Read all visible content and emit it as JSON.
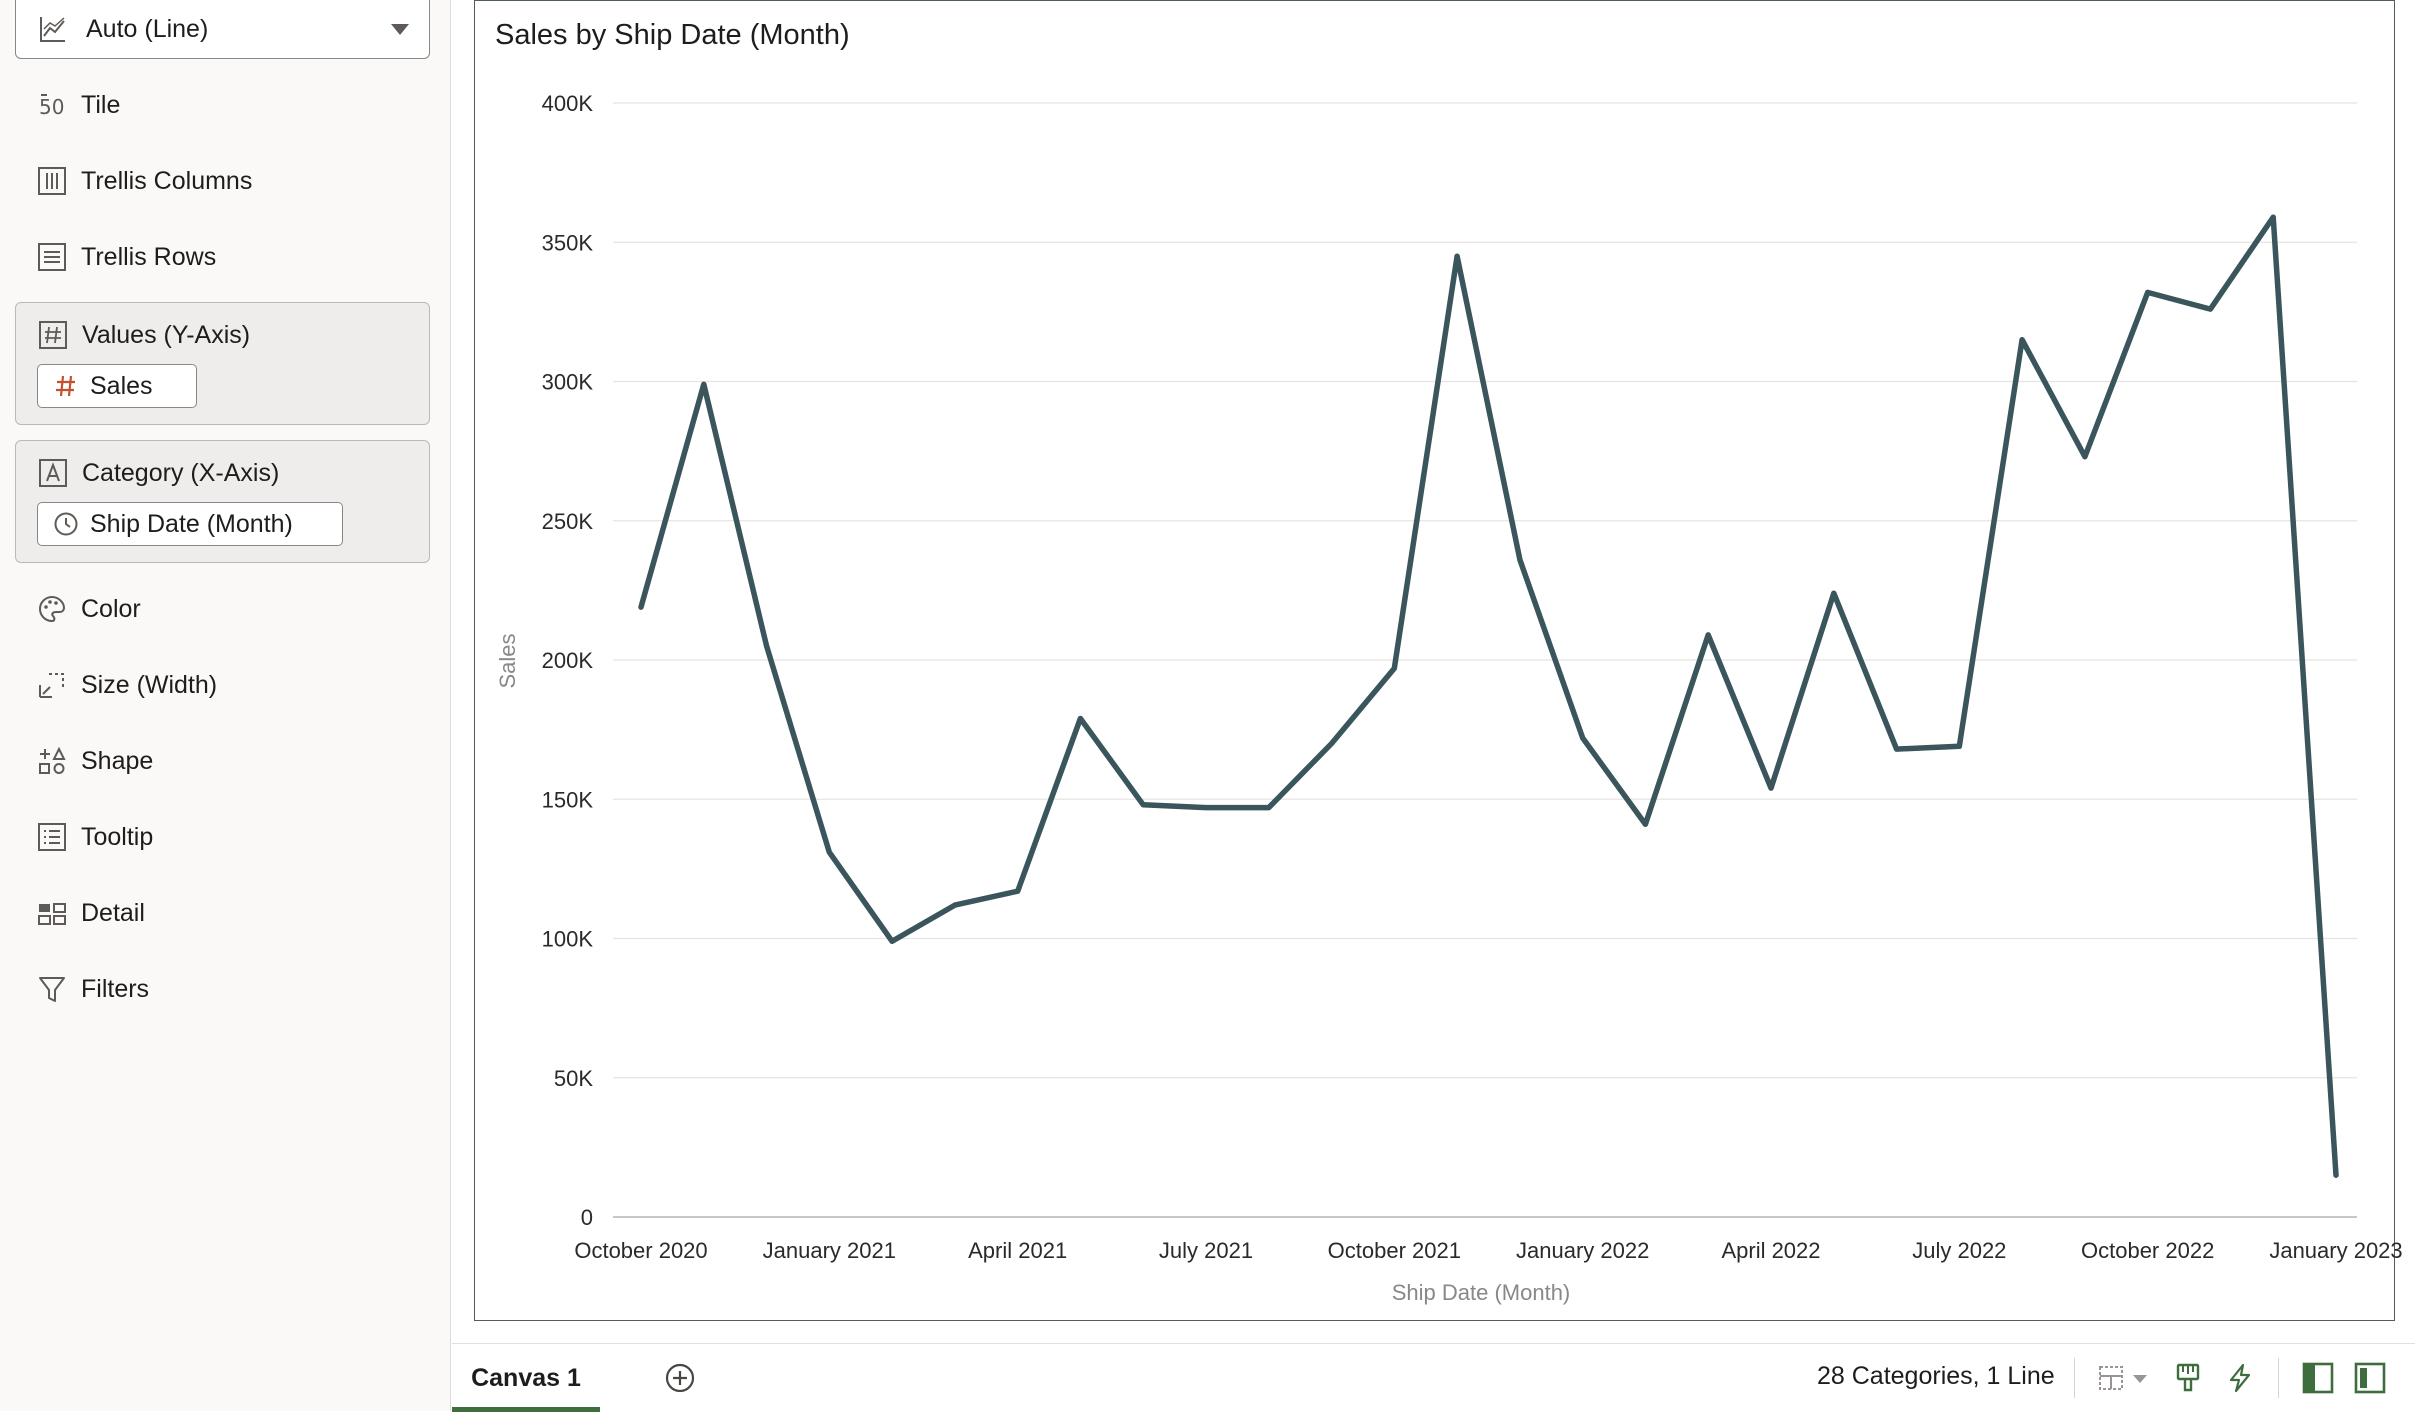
{
  "panel": {
    "viz_type": "Auto (Line)",
    "rows_top": [
      {
        "label": "Tile",
        "icon": "tile-icon"
      },
      {
        "label": "Trellis Columns",
        "icon": "trellis-columns-icon"
      },
      {
        "label": "Trellis Rows",
        "icon": "trellis-rows-icon"
      }
    ],
    "values_box": {
      "label": "Values (Y-Axis)",
      "pill": "Sales"
    },
    "category_box": {
      "label": "Category (X-Axis)",
      "pill": "Ship Date (Month)"
    },
    "rows_bottom": [
      {
        "label": "Color",
        "icon": "palette-icon"
      },
      {
        "label": "Size (Width)",
        "icon": "size-icon"
      },
      {
        "label": "Shape",
        "icon": "shape-icon"
      },
      {
        "label": "Tooltip",
        "icon": "tooltip-icon"
      },
      {
        "label": "Detail",
        "icon": "detail-icon"
      },
      {
        "label": "Filters",
        "icon": "filter-icon"
      }
    ]
  },
  "chart_data": {
    "type": "line",
    "title": "Sales by Ship Date (Month)",
    "xlabel": "Ship Date (Month)",
    "ylabel": "Sales",
    "ylim": [
      0,
      400000
    ],
    "yticks": [
      0,
      50000,
      100000,
      150000,
      200000,
      250000,
      300000,
      350000,
      400000
    ],
    "ytick_labels": [
      "0",
      "50K",
      "100K",
      "150K",
      "200K",
      "250K",
      "300K",
      "350K",
      "400K"
    ],
    "x": [
      "2020-10",
      "2020-11",
      "2020-12",
      "2021-01",
      "2021-02",
      "2021-03",
      "2021-04",
      "2021-05",
      "2021-06",
      "2021-07",
      "2021-08",
      "2021-09",
      "2021-10",
      "2021-11",
      "2021-12",
      "2022-01",
      "2022-02",
      "2022-03",
      "2022-04",
      "2022-05",
      "2022-06",
      "2022-07",
      "2022-08",
      "2022-09",
      "2022-10",
      "2022-11",
      "2022-12",
      "2023-01"
    ],
    "xtick_labels": [
      {
        "index": 0,
        "label": "October 2020"
      },
      {
        "index": 3,
        "label": "January 2021"
      },
      {
        "index": 6,
        "label": "April 2021"
      },
      {
        "index": 9,
        "label": "July 2021"
      },
      {
        "index": 12,
        "label": "October 2021"
      },
      {
        "index": 15,
        "label": "January 2022"
      },
      {
        "index": 18,
        "label": "April 2022"
      },
      {
        "index": 21,
        "label": "July 2022"
      },
      {
        "index": 24,
        "label": "October 2022"
      },
      {
        "index": 27,
        "label": "January 2023"
      }
    ],
    "series": [
      {
        "values": [
          219000,
          299000,
          205000,
          131000,
          99000,
          112000,
          117000,
          179000,
          148000,
          147000,
          147000,
          170000,
          197000,
          345000,
          236000,
          172000,
          141000,
          209000,
          154000,
          224000,
          168000,
          169000,
          315000,
          273000,
          332000,
          326000,
          359000,
          15000
        ],
        "color": "#3a555c"
      }
    ],
    "grid": true,
    "legend": "none"
  },
  "bottom_bar": {
    "tab_label": "Canvas 1",
    "status": "28 Categories, 1 Line"
  },
  "colors": {
    "accent": "#3e6e3d",
    "line": "#3a555c"
  }
}
